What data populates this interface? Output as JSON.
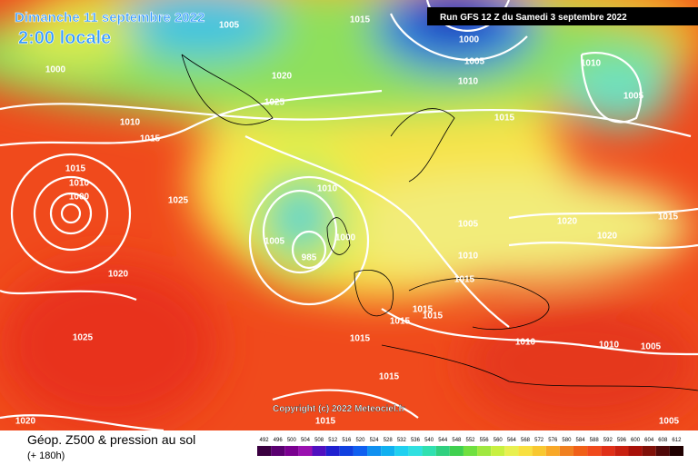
{
  "header": {
    "date": "Dimanche 11 septembre 2022",
    "local_time": "2:00 locale",
    "run": "Run GFS 12 Z du Samedi 3 septembre 2022"
  },
  "copyright": "Copyright (c) 2022 Meteociel.fr",
  "footer": {
    "title": "Géop. Z500 & pression au sol",
    "lead_time": "(+ 180h)"
  },
  "scale": {
    "labels": [
      492,
      496,
      500,
      504,
      508,
      512,
      516,
      520,
      524,
      528,
      532,
      536,
      540,
      544,
      548,
      552,
      556,
      560,
      564,
      568,
      572,
      576,
      580,
      584,
      588,
      592,
      596,
      600,
      604,
      608,
      612
    ]
  },
  "isobar_labels": [
    "1015",
    "1005",
    "1015",
    "1000",
    "1005",
    "1010",
    "1010",
    "1005",
    "1000",
    "1020",
    "1025",
    "1010",
    "1015",
    "1015",
    "1015",
    "1010",
    "1000",
    "1025",
    "1010",
    "1005",
    "1020",
    "1015",
    "1020",
    "1005",
    "1000",
    "985",
    "1010",
    "1020",
    "1015",
    "1015",
    "1015",
    "1015",
    "1015",
    "1010",
    "1010",
    "1005",
    "1025",
    "1015",
    "1020",
    "1015",
    "1005"
  ]
}
